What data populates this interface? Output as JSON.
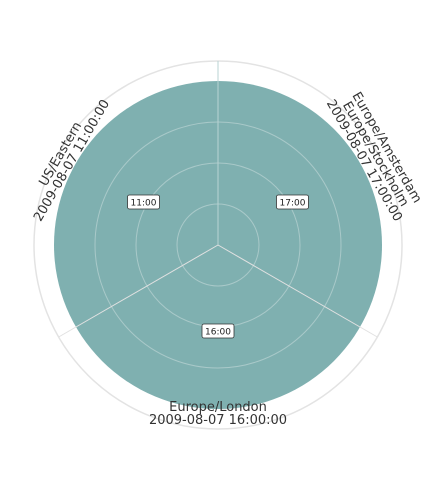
{
  "chart_data": {
    "type": "radar",
    "axes": [
      {
        "lines": [
          "US/Eastern",
          "2009-08-07 11:00:00"
        ],
        "value": "11:00"
      },
      {
        "lines": [
          "Europe/Amsterdam",
          "Europe/Stockholm",
          "2009-08-07 17:00:00"
        ],
        "value": "17:00"
      },
      {
        "lines": [
          "Europe/London",
          "2009-08-07 16:00:00"
        ],
        "value": "16:00"
      }
    ],
    "rings": 4,
    "grid": true,
    "colors": {
      "fill": "#7fb0b0",
      "grid_outer": "#e3e3e3",
      "grid_inner": "#a9c9c9",
      "text": "#333333"
    }
  }
}
